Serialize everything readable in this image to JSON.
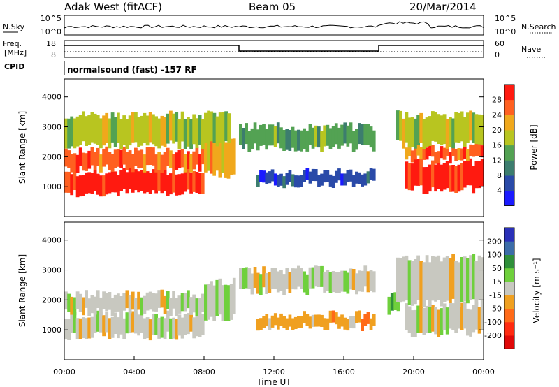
{
  "header": {
    "station": "Adak West (fitACF)",
    "beam": "Beam 05",
    "date": "20/Mar/2014"
  },
  "noise_panel": {
    "left_label": "N.Sky",
    "left_ticks": [
      "10^5",
      "10^0"
    ],
    "right_ticks": [
      "10^5",
      "10^0"
    ],
    "right_label": "N.Search"
  },
  "freq_panel": {
    "left_label_1": "Freq.",
    "left_label_2": "[MHz]",
    "left_ticks": [
      "18",
      "8"
    ],
    "right_ticks": [
      "60",
      "0"
    ],
    "right_label": "Nave"
  },
  "cpid": {
    "label": "CPID",
    "text": "normalsound (fast) -157 RF"
  },
  "chart_data": [
    {
      "type": "heatmap",
      "quantity": "Power",
      "ylabel": "Slant Range [km]",
      "yticks": [
        "1000",
        "2000",
        "3000",
        "4000"
      ],
      "ylim": [
        0,
        4600
      ],
      "xlim_hours": [
        0,
        24
      ],
      "colorbar_label": "Power [dB]",
      "colorbar_ticks": [
        "4",
        "8",
        "12",
        "16",
        "20",
        "24",
        "28"
      ],
      "colorbar_colors": [
        "#1a1aff",
        "#2a4aa8",
        "#3c7d6e",
        "#53a253",
        "#b8c520",
        "#f0a81c",
        "#ff6020",
        "#ff1a10"
      ],
      "bands": [
        {
          "start": 0,
          "end": 8.0,
          "r_lo": 800,
          "r_hi": 1500,
          "level": 7
        },
        {
          "start": 0,
          "end": 8.0,
          "r_lo": 1600,
          "r_hi": 2200,
          "level": 6
        },
        {
          "start": 8.0,
          "end": 9.8,
          "r_lo": 1400,
          "r_hi": 2600,
          "level": 5
        },
        {
          "start": 0,
          "end": 9.5,
          "r_lo": 2400,
          "r_hi": 3400,
          "level": 4
        },
        {
          "start": 10.0,
          "end": 17.8,
          "r_lo": 2300,
          "r_hi": 3000,
          "level": 3
        },
        {
          "start": 11.0,
          "end": 17.8,
          "r_lo": 1100,
          "r_hi": 1500,
          "level": 1
        },
        {
          "start": 19.5,
          "end": 24,
          "r_lo": 900,
          "r_hi": 1800,
          "level": 7
        },
        {
          "start": 19.5,
          "end": 24,
          "r_lo": 1900,
          "r_hi": 2300,
          "level": 6
        },
        {
          "start": 19.0,
          "end": 24,
          "r_lo": 2400,
          "r_hi": 3400,
          "level": 4
        }
      ]
    },
    {
      "type": "heatmap",
      "quantity": "Velocity",
      "ylabel": "Slant Range [km]",
      "yticks": [
        "1000",
        "2000",
        "3000",
        "4000"
      ],
      "ylim": [
        0,
        4600
      ],
      "xlim_hours": [
        0,
        24
      ],
      "colorbar_label": "Velocity [m s⁻¹]",
      "colorbar_ticks": [
        "200",
        "100",
        "50",
        "15",
        "-15",
        "-50",
        "-100",
        "-200"
      ],
      "colorbar_colors": [
        "#2a30b8",
        "#3c6da8",
        "#2f8f3a",
        "#6fd03c",
        "#c8c8c0",
        "#f0a020",
        "#ff6a18",
        "#ff2a10",
        "#e00808"
      ],
      "bands": [
        {
          "start": 0,
          "end": 8.0,
          "r_lo": 800,
          "r_hi": 1500,
          "level": 4
        },
        {
          "start": 0,
          "end": 8.0,
          "r_lo": 1600,
          "r_hi": 2200,
          "level": 4
        },
        {
          "start": 8.0,
          "end": 9.8,
          "r_lo": 1400,
          "r_hi": 2600,
          "level": 4
        },
        {
          "start": 10.0,
          "end": 17.8,
          "r_lo": 2300,
          "r_hi": 3000,
          "level": 4
        },
        {
          "start": 11.0,
          "end": 17.8,
          "r_lo": 1100,
          "r_hi": 1500,
          "level": 5
        },
        {
          "start": 18.5,
          "end": 19.2,
          "r_lo": 1600,
          "r_hi": 2200,
          "level": 3
        },
        {
          "start": 19.5,
          "end": 24,
          "r_lo": 900,
          "r_hi": 1800,
          "level": 4
        },
        {
          "start": 19.0,
          "end": 24,
          "r_lo": 1900,
          "r_hi": 3400,
          "level": 4
        }
      ]
    }
  ],
  "xaxis": {
    "ticks": [
      "00:00",
      "04:00",
      "08:00",
      "12:00",
      "16:00",
      "20:00",
      "00:00"
    ],
    "label": "Time UT"
  }
}
